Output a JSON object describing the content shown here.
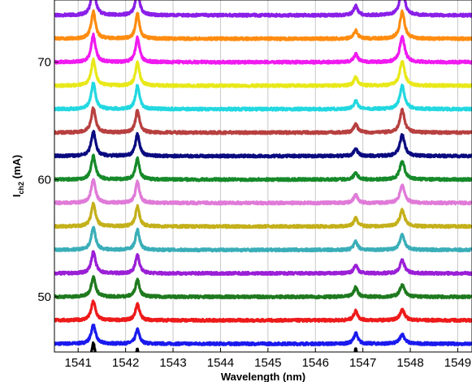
{
  "chart_data": {
    "type": "line",
    "title": "",
    "xlabel": "Wavelength (nm)",
    "ylabel": {
      "main": "I",
      "subscript": "ch2",
      "unit": " (mA)"
    },
    "xlim": [
      1540.5,
      1549.3
    ],
    "ylim": [
      45.3,
      75.3
    ],
    "grid": true,
    "legend": "none",
    "x_ticks": [
      1541,
      1542,
      1543,
      1544,
      1545,
      1546,
      1547,
      1548,
      1549
    ],
    "y_ticks": [
      50,
      60,
      70
    ],
    "peaks_nm": [
      1541.32,
      1542.25,
      1546.85,
      1547.83
    ],
    "series": [
      {
        "offset_mA": 46,
        "color": "#1a1aee",
        "peak_heights_mA": [
          1.6,
          1.2,
          0.9,
          0.8
        ]
      },
      {
        "offset_mA": 48,
        "color": "#ee1a1a",
        "peak_heights_mA": [
          1.6,
          1.4,
          0.8,
          0.9
        ]
      },
      {
        "offset_mA": 50,
        "color": "#1f7a1f",
        "peak_heights_mA": [
          1.7,
          1.5,
          0.8,
          1.0
        ]
      },
      {
        "offset_mA": 52,
        "color": "#9a1fd6",
        "peak_heights_mA": [
          1.8,
          1.6,
          0.7,
          1.1
        ]
      },
      {
        "offset_mA": 54,
        "color": "#3aaeb8",
        "peak_heights_mA": [
          1.9,
          1.7,
          0.7,
          1.3
        ]
      },
      {
        "offset_mA": 56,
        "color": "#c4b01a",
        "peak_heights_mA": [
          1.9,
          1.7,
          0.7,
          1.4
        ]
      },
      {
        "offset_mA": 58,
        "color": "#e07ad8",
        "peak_heights_mA": [
          2.0,
          1.8,
          0.7,
          1.5
        ]
      },
      {
        "offset_mA": 60,
        "color": "#168a2a",
        "peak_heights_mA": [
          2.0,
          1.8,
          0.6,
          1.6
        ]
      },
      {
        "offset_mA": 62,
        "color": "#0a0a80",
        "peak_heights_mA": [
          2.1,
          1.9,
          0.6,
          1.8
        ]
      },
      {
        "offset_mA": 64,
        "color": "#b84040",
        "peak_heights_mA": [
          2.1,
          1.9,
          0.7,
          1.9
        ]
      },
      {
        "offset_mA": 66,
        "color": "#22d8e0",
        "peak_heights_mA": [
          2.2,
          2.0,
          0.7,
          2.0
        ]
      },
      {
        "offset_mA": 68,
        "color": "#e8e81a",
        "peak_heights_mA": [
          2.2,
          2.0,
          0.7,
          2.1
        ]
      },
      {
        "offset_mA": 70,
        "color": "#f01af0",
        "peak_heights_mA": [
          2.3,
          2.1,
          0.7,
          2.2
        ]
      },
      {
        "offset_mA": 72,
        "color": "#ff8c10",
        "peak_heights_mA": [
          2.3,
          2.1,
          0.7,
          2.3
        ]
      },
      {
        "offset_mA": 74,
        "color": "#8a1fe8",
        "peak_heights_mA": [
          2.4,
          2.2,
          0.8,
          2.4
        ]
      },
      {
        "offset_mA": 44,
        "color": "#000000",
        "peak_heights_mA": [
          2.0,
          1.5,
          1.5,
          0.0
        ]
      }
    ]
  }
}
